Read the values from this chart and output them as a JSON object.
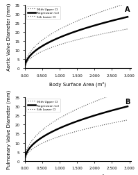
{
  "title_A": "A",
  "title_B": "B",
  "xlabel": "Body Surface Area (m²)",
  "ylabel_A": "Aortic Valve Diameter (mm)",
  "ylabel_B": "Pulmonary Valve Diameter (mm)",
  "x_min": 0.0,
  "x_max": 3.0,
  "x_ticks": [
    0.0,
    0.5,
    1.0,
    1.5,
    2.0,
    2.5,
    3.0
  ],
  "x_tick_labels": [
    "0.00",
    "0.500",
    "1.000",
    "1.500",
    "2.000",
    "2.500",
    "3.000"
  ],
  "yA_min": 0,
  "yA_max": 35,
  "yA_ticks": [
    0,
    5,
    10,
    15,
    20,
    25,
    30,
    35
  ],
  "yB_min": 0,
  "yB_max": 35,
  "yB_ticks": [
    0,
    5,
    10,
    15,
    20,
    25,
    30,
    35
  ],
  "legend_labels": [
    "95th Upper CI",
    "Regression (ci)",
    "5th Lower CI"
  ],
  "background_color": "#ffffff",
  "tick_font_size": 4,
  "label_font_size": 5
}
